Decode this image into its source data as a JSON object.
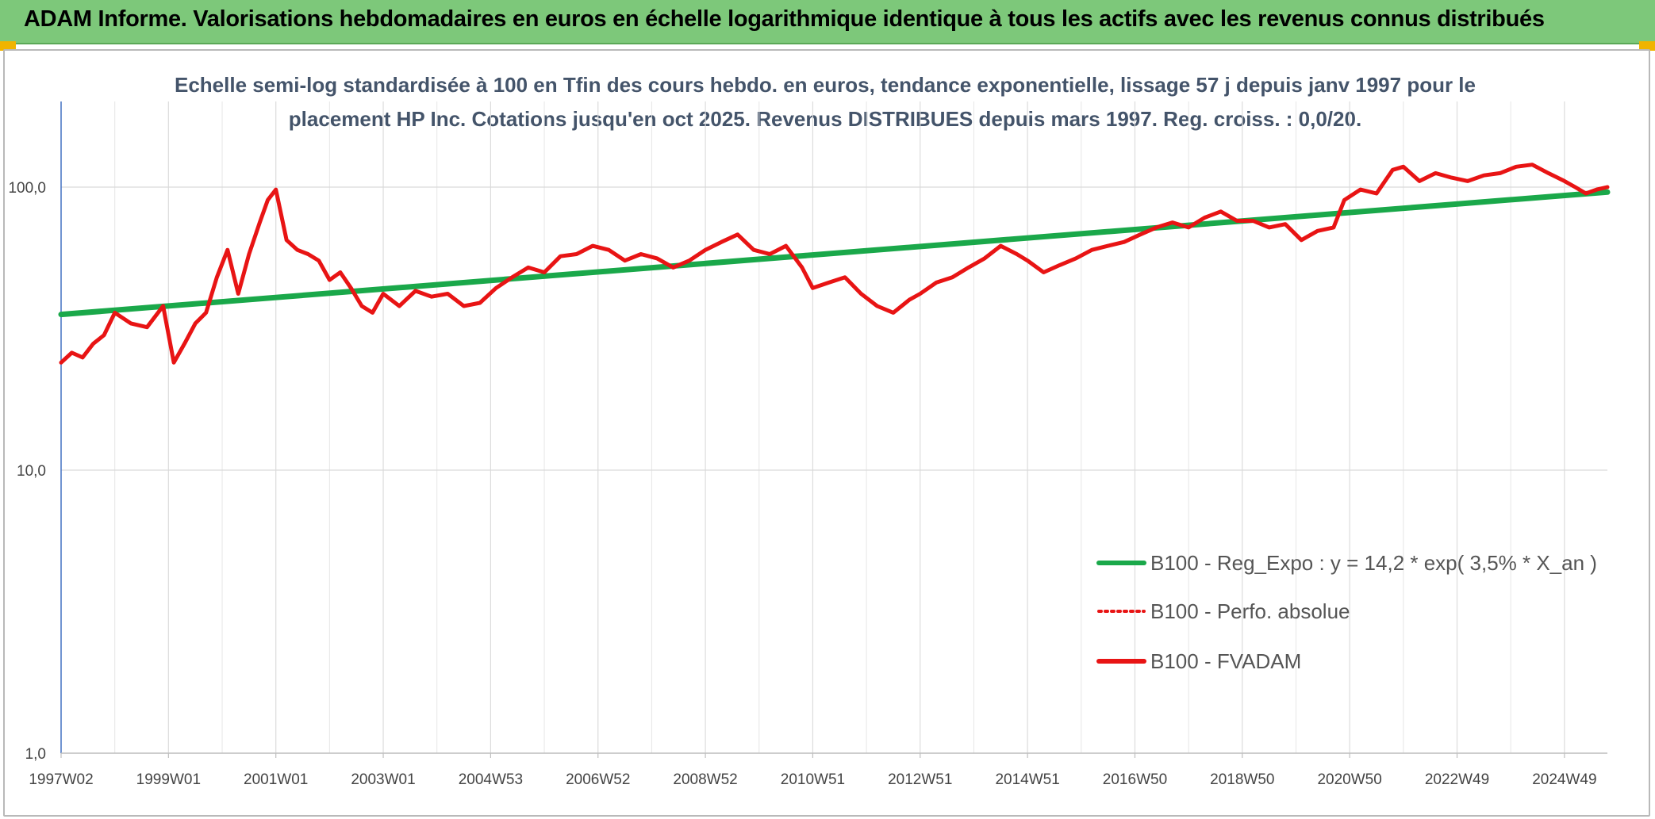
{
  "header": {
    "title": "ADAM Informe. Valorisations hebdomadaires en euros en échelle logarithmique identique à tous les actifs avec les revenus connus distribués"
  },
  "chart_data": {
    "type": "line",
    "title_lines": [
      "Echelle semi-log standardisée à 100 en Tfin des cours hebdo. en euros, tendance exponentielle, lissage 57 j depuis janv 1997 pour le",
      "placement HP Inc. Cotations jusqu'en oct 2025. Revenus DISTRIBUES depuis mars 1997. Reg. croiss. : 0,0/20."
    ],
    "y_scale": "log",
    "ylim": [
      1,
      200
    ],
    "y_ticks": [
      {
        "value": 1,
        "label": "1,0"
      },
      {
        "value": 10,
        "label": "10,0"
      },
      {
        "value": 100,
        "label": "100,0"
      }
    ],
    "xlim": [
      1997.0,
      2025.8
    ],
    "x_ticks": [
      {
        "value": 1997.0,
        "label": "1997W02"
      },
      {
        "value": 1999.0,
        "label": "1999W01"
      },
      {
        "value": 2001.0,
        "label": "2001W01"
      },
      {
        "value": 2003.0,
        "label": "2003W01"
      },
      {
        "value": 2005.0,
        "label": "2004W53"
      },
      {
        "value": 2007.0,
        "label": "2006W52"
      },
      {
        "value": 2009.0,
        "label": "2008W52"
      },
      {
        "value": 2011.0,
        "label": "2010W51"
      },
      {
        "value": 2013.0,
        "label": "2012W51"
      },
      {
        "value": 2015.0,
        "label": "2014W51"
      },
      {
        "value": 2017.0,
        "label": "2016W50"
      },
      {
        "value": 2019.0,
        "label": "2018W50"
      },
      {
        "value": 2021.0,
        "label": "2020W50"
      },
      {
        "value": 2023.0,
        "label": "2022W49"
      },
      {
        "value": 2025.0,
        "label": "2024W49"
      }
    ],
    "grid": "vertical and horizontal",
    "legend_position": "bottom-right",
    "series": [
      {
        "name": "B100 - Reg_Expo : y = 14,2 * exp( 3,5% *  X_an )",
        "color": "#1aa84a",
        "style": "solid",
        "x": [
          1997.0,
          2025.8
        ],
        "values": [
          35.5,
          96
        ]
      },
      {
        "name": "B100 - Perfo. absolue",
        "color": "#e81414",
        "style": "dotted",
        "x": [],
        "values": []
      },
      {
        "name": "B100 - FVADAM",
        "color": "#e81414",
        "style": "solid",
        "x": [
          1997.0,
          1997.2,
          1997.4,
          1997.6,
          1997.8,
          1998.0,
          1998.3,
          1998.6,
          1998.9,
          1999.1,
          1999.3,
          1999.5,
          1999.7,
          1999.9,
          2000.1,
          2000.3,
          2000.5,
          2000.7,
          2000.85,
          2001.0,
          2001.2,
          2001.4,
          2001.6,
          2001.8,
          2002.0,
          2002.2,
          2002.4,
          2002.6,
          2002.8,
          2003.0,
          2003.3,
          2003.6,
          2003.9,
          2004.2,
          2004.5,
          2004.8,
          2005.1,
          2005.4,
          2005.7,
          2006.0,
          2006.3,
          2006.6,
          2006.9,
          2007.2,
          2007.5,
          2007.8,
          2008.1,
          2008.4,
          2008.7,
          2009.0,
          2009.3,
          2009.6,
          2009.9,
          2010.2,
          2010.5,
          2010.8,
          2011.0,
          2011.3,
          2011.6,
          2011.9,
          2012.2,
          2012.5,
          2012.8,
          2013.0,
          2013.3,
          2013.6,
          2013.9,
          2014.2,
          2014.5,
          2014.8,
          2015.0,
          2015.3,
          2015.6,
          2015.9,
          2016.2,
          2016.5,
          2016.8,
          2017.1,
          2017.4,
          2017.7,
          2018.0,
          2018.3,
          2018.6,
          2018.9,
          2019.2,
          2019.5,
          2019.8,
          2020.1,
          2020.4,
          2020.7,
          2020.9,
          2021.2,
          2021.5,
          2021.8,
          2022.0,
          2022.3,
          2022.6,
          2022.9,
          2023.2,
          2023.5,
          2023.8,
          2024.1,
          2024.4,
          2024.7,
          2025.0,
          2025.2,
          2025.4,
          2025.6,
          2025.8
        ],
        "values": [
          24,
          26,
          25,
          28,
          30,
          36,
          33,
          32,
          38,
          24,
          28,
          33,
          36,
          48,
          60,
          42,
          58,
          75,
          90,
          98,
          65,
          60,
          58,
          55,
          47,
          50,
          44,
          38,
          36,
          42,
          38,
          43,
          41,
          42,
          38,
          39,
          44,
          48,
          52,
          50,
          57,
          58,
          62,
          60,
          55,
          58,
          56,
          52,
          55,
          60,
          64,
          68,
          60,
          58,
          62,
          52,
          44,
          46,
          48,
          42,
          38,
          36,
          40,
          42,
          46,
          48,
          52,
          56,
          62,
          58,
          55,
          50,
          53,
          56,
          60,
          62,
          64,
          68,
          72,
          75,
          72,
          78,
          82,
          76,
          76,
          72,
          74,
          65,
          70,
          72,
          90,
          98,
          95,
          115,
          118,
          105,
          112,
          108,
          105,
          110,
          112,
          118,
          120,
          112,
          105,
          100,
          95,
          98,
          100
        ]
      }
    ]
  }
}
